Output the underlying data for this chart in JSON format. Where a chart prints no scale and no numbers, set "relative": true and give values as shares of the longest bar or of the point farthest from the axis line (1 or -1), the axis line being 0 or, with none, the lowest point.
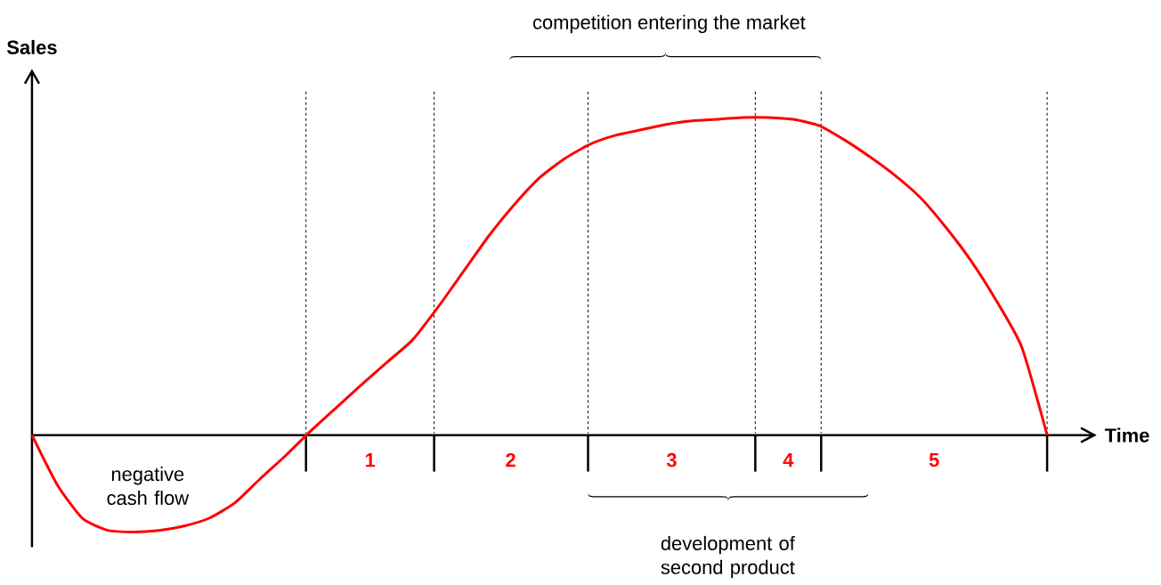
{
  "chart_data": {
    "type": "line",
    "relative": true,
    "grid": "x",
    "xlabel": "Time",
    "ylabel": "Sales",
    "categories": [
      null,
      null,
      null,
      null,
      null,
      null,
      null,
      null,
      null,
      null,
      null,
      null,
      null,
      null,
      null,
      null,
      null,
      null,
      null,
      null,
      null,
      null,
      null,
      null,
      null,
      null,
      null,
      null,
      null,
      null,
      null,
      null,
      null,
      null,
      null,
      null,
      null,
      null,
      null,
      null,
      null
    ],
    "series": [
      {
        "color": "#ff0000",
        "values": [
          0,
          -0.157,
          -0.263,
          -0.3,
          -0.305,
          -0.3,
          -0.286,
          -0.261,
          -0.213,
          -0.137,
          -0.064,
          0.014,
          0.087,
          0.16,
          0.23,
          0.3,
          0.403,
          0.515,
          0.627,
          0.725,
          0.81,
          0.871,
          0.916,
          0.944,
          0.961,
          0.978,
          0.989,
          0.994,
          1,
          1,
          0.994,
          0.975,
          0.93,
          0.877,
          0.818,
          0.748,
          0.655,
          0.549,
          0.423,
          0.277,
          0
        ]
      }
    ],
    "annotations": [
      "competition entering the market",
      "negative cash flow",
      "development of second product",
      "1",
      "2",
      "3",
      "4",
      "5"
    ]
  }
}
